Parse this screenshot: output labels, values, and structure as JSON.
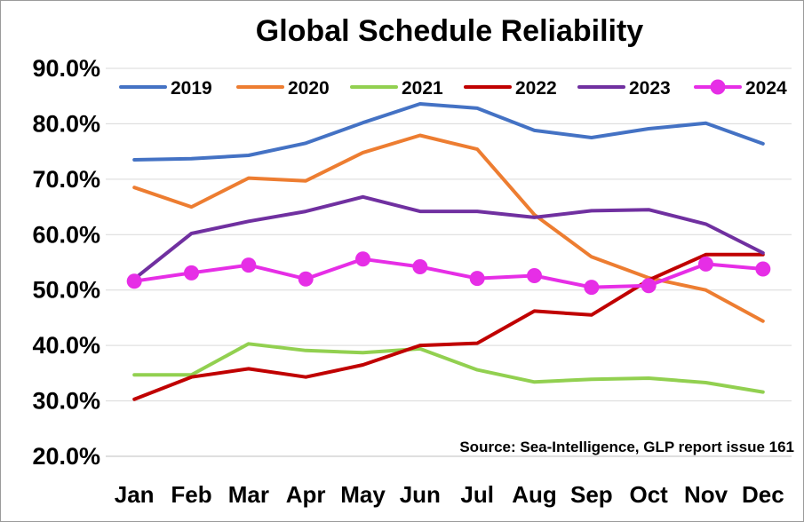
{
  "chart_data": {
    "type": "line",
    "title": "Global Schedule Reliability",
    "categories": [
      "Jan",
      "Feb",
      "Mar",
      "Apr",
      "May",
      "Jun",
      "Jul",
      "Aug",
      "Sep",
      "Oct",
      "Nov",
      "Dec"
    ],
    "ylim": [
      20.0,
      90.0
    ],
    "yticks": [
      "20.0%",
      "30.0%",
      "40.0%",
      "50.0%",
      "60.0%",
      "70.0%",
      "80.0%",
      "90.0%"
    ],
    "ytick_values": [
      20,
      30,
      40,
      50,
      60,
      70,
      80,
      90
    ],
    "grid": true,
    "legend_position": "top",
    "annotation": "Source: Sea-Intelligence, GLP report issue 161",
    "series": [
      {
        "name": "2019",
        "color": "#4472C4",
        "marker": false,
        "values": [
          73.5,
          73.7,
          74.3,
          76.5,
          80.2,
          83.6,
          82.8,
          78.8,
          77.5,
          79.1,
          80.1,
          76.4
        ]
      },
      {
        "name": "2020",
        "color": "#ED7D31",
        "marker": false,
        "values": [
          68.5,
          65.0,
          70.2,
          69.7,
          74.8,
          77.9,
          75.4,
          63.6,
          56.0,
          52.2,
          50.0,
          44.4
        ]
      },
      {
        "name": "2021",
        "color": "#92D050",
        "marker": false,
        "values": [
          34.7,
          34.7,
          40.3,
          39.1,
          38.7,
          39.4,
          35.6,
          33.4,
          33.9,
          34.1,
          33.3,
          31.6
        ]
      },
      {
        "name": "2022",
        "color": "#C00000",
        "marker": false,
        "values": [
          30.3,
          34.3,
          35.8,
          34.3,
          36.5,
          40.0,
          40.4,
          46.2,
          45.5,
          51.8,
          56.4,
          56.4
        ]
      },
      {
        "name": "2023",
        "color": "#7030A0",
        "marker": false,
        "values": [
          52.0,
          60.2,
          62.4,
          64.2,
          66.8,
          64.2,
          64.2,
          63.1,
          64.3,
          64.5,
          61.9,
          56.7
        ]
      },
      {
        "name": "2024",
        "color": "#E62EE6",
        "marker": true,
        "values": [
          51.6,
          53.1,
          54.5,
          52.0,
          55.6,
          54.2,
          52.1,
          52.6,
          50.5,
          50.8,
          54.7,
          53.8
        ]
      }
    ]
  }
}
